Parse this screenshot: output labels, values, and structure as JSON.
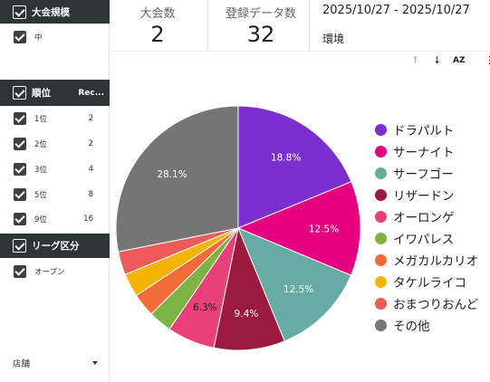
{
  "filters": {
    "size": {
      "title": "大会規模",
      "options": [
        {
          "label": "中"
        }
      ]
    },
    "rank": {
      "title": "順位",
      "count_header": "Rec...",
      "options": [
        {
          "label": "1位",
          "count": "2"
        },
        {
          "label": "2位",
          "count": "2"
        },
        {
          "label": "3位",
          "count": "4"
        },
        {
          "label": "5位",
          "count": "8"
        },
        {
          "label": "9位",
          "count": "16"
        }
      ]
    },
    "league": {
      "title": "リーグ区分",
      "options": [
        {
          "label": "オープン"
        }
      ]
    },
    "store": {
      "label": "店舗"
    }
  },
  "scorecards": [
    {
      "label": "大会数",
      "value": "2"
    },
    {
      "label": "登録データ数",
      "value": "32"
    }
  ],
  "date_range": "2025/10/27 - 2025/10/27",
  "environment_label": "環境",
  "toolbar": {
    "sort_up": "↑",
    "sort_down": "↓",
    "sort_az": "AZ",
    "more": "⋮"
  },
  "chart_data": {
    "type": "pie",
    "slices": [
      {
        "name": "ドラパルト",
        "value": 18.8,
        "color": "#7b2fd0",
        "label": "18.8%"
      },
      {
        "name": "サーナイト",
        "value": 12.5,
        "color": "#e6007e",
        "label": "12.5%"
      },
      {
        "name": "サーフゴー",
        "value": 12.5,
        "color": "#66aca4",
        "label": "12.5%"
      },
      {
        "name": "リザードン",
        "value": 9.4,
        "color": "#9c1a3c",
        "label": "9.4%"
      },
      {
        "name": "オーロンゲ",
        "value": 6.3,
        "color": "#e8417a",
        "label": "6.3%"
      },
      {
        "name": "イワパレス",
        "value": 3.1,
        "color": "#7cb342",
        "label": ""
      },
      {
        "name": "メガカルカリオ",
        "value": 3.1,
        "color": "#f26b38",
        "label": ""
      },
      {
        "name": "タケルライコ",
        "value": 3.1,
        "color": "#f4b400",
        "label": ""
      },
      {
        "name": "おまつりおんど",
        "value": 3.1,
        "color": "#ec5a5a",
        "label": ""
      },
      {
        "name": "その他",
        "value": 28.1,
        "color": "#757575",
        "label": "28.1%"
      }
    ],
    "legend_position": "right"
  }
}
